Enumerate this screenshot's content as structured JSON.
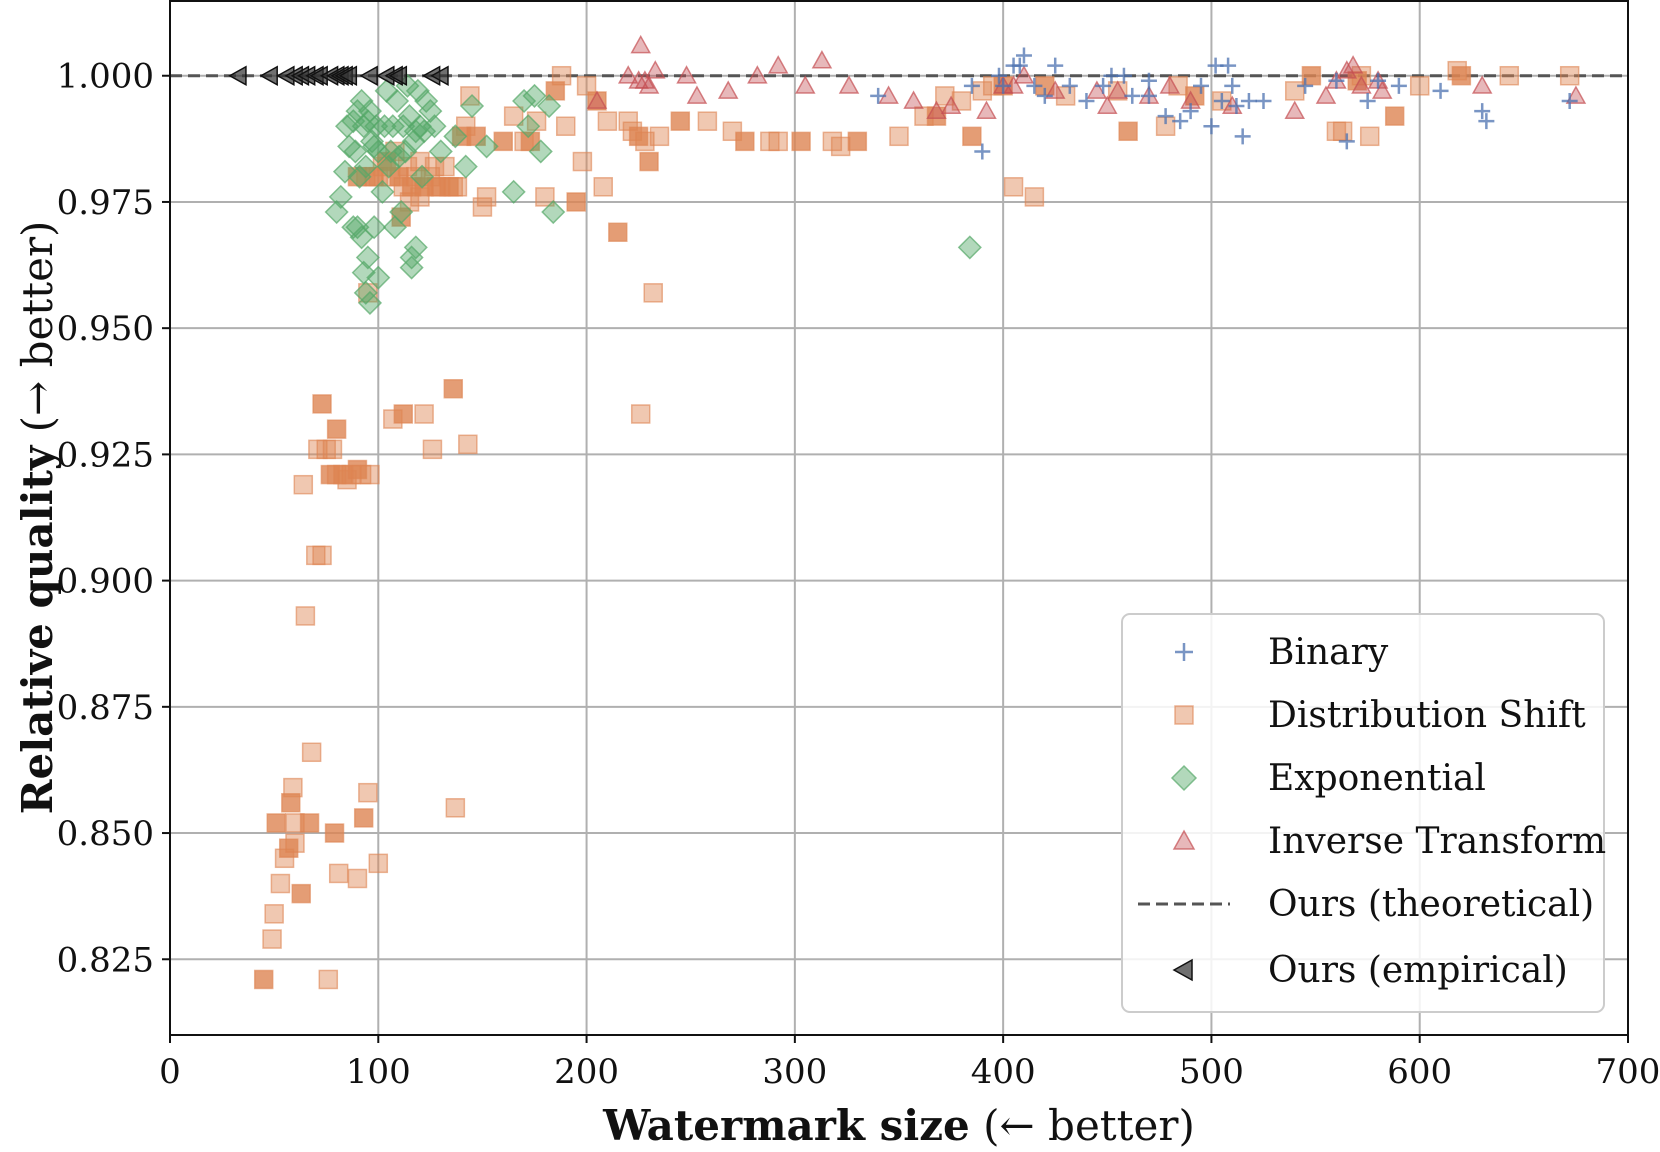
{
  "chart_data": {
    "type": "scatter",
    "title": "",
    "xlabel_bold": "Watermark size",
    "xlabel_rest": " (← better)",
    "ylabel_bold": "Relative quality",
    "ylabel_rest": " (→ better)",
    "xlim": [
      0,
      700
    ],
    "ylim": [
      0.81,
      1.015
    ],
    "xticks": [
      0,
      100,
      200,
      300,
      400,
      500,
      600,
      700
    ],
    "xtick_labels": [
      "0",
      "100",
      "200",
      "300",
      "400",
      "500",
      "600",
      "700"
    ],
    "yticks": [
      0.825,
      0.85,
      0.875,
      0.9,
      0.925,
      0.95,
      0.975,
      1.0
    ],
    "ytick_labels": [
      "0.825",
      "0.850",
      "0.875",
      "0.900",
      "0.925",
      "0.950",
      "0.975",
      "1.000"
    ],
    "grid": true,
    "legend_position": "lower-right",
    "colors": {
      "binary": "#4c72b0",
      "distribution_shift": "#dd8452",
      "exponential": "#55a868",
      "inverse_transform": "#c44e52",
      "ours": "#333333"
    },
    "legend": [
      {
        "label": "Binary",
        "marker": "plus",
        "series": "binary"
      },
      {
        "label": "Distribution Shift",
        "marker": "square",
        "series": "distribution_shift"
      },
      {
        "label": "Exponential",
        "marker": "diamond",
        "series": "exponential"
      },
      {
        "label": "Inverse Transform",
        "marker": "triangle-up",
        "series": "inverse_transform"
      },
      {
        "label": "Ours (theoretical)",
        "marker": "dashed-line",
        "series": "ours_theoretical"
      },
      {
        "label": "Ours (empirical)",
        "marker": "triangle-left",
        "series": "ours_empirical"
      }
    ],
    "series": {
      "ours_theoretical": {
        "y": 1.0
      },
      "ours_empirical": [
        [
          33,
          1.0
        ],
        [
          48,
          1.0
        ],
        [
          56,
          1.0
        ],
        [
          60,
          1.0
        ],
        [
          63,
          1.0
        ],
        [
          66,
          1.0
        ],
        [
          70,
          1.0
        ],
        [
          72,
          1.0
        ],
        [
          77,
          1.0
        ],
        [
          80,
          1.0
        ],
        [
          82,
          1.0
        ],
        [
          84,
          1.0
        ],
        [
          86,
          1.0
        ],
        [
          96,
          1.0
        ],
        [
          104,
          1.0
        ],
        [
          108,
          1.0
        ],
        [
          110,
          1.0
        ],
        [
          126,
          1.0
        ],
        [
          130,
          1.0
        ]
      ],
      "binary": [
        [
          340,
          0.996
        ],
        [
          385,
          0.998
        ],
        [
          390,
          0.985
        ],
        [
          398,
          1.0
        ],
        [
          400,
          0.998
        ],
        [
          405,
          1.002
        ],
        [
          408,
          1.002
        ],
        [
          410,
          1.004
        ],
        [
          415,
          0.998
        ],
        [
          420,
          0.996
        ],
        [
          425,
          1.002
        ],
        [
          432,
          0.998
        ],
        [
          440,
          0.995
        ],
        [
          448,
          0.998
        ],
        [
          452,
          1.0
        ],
        [
          458,
          1.0
        ],
        [
          462,
          0.996
        ],
        [
          470,
          0.996
        ],
        [
          478,
          0.992
        ],
        [
          485,
          0.991
        ],
        [
          490,
          0.993
        ],
        [
          495,
          0.998
        ],
        [
          500,
          0.99
        ],
        [
          502,
          1.002
        ],
        [
          505,
          0.995
        ],
        [
          508,
          1.002
        ],
        [
          510,
          0.998
        ],
        [
          512,
          0.994
        ],
        [
          515,
          0.988
        ],
        [
          518,
          0.995
        ],
        [
          525,
          0.995
        ],
        [
          545,
          0.998
        ],
        [
          560,
          0.999
        ],
        [
          565,
          0.987
        ],
        [
          575,
          0.995
        ],
        [
          580,
          0.999
        ],
        [
          610,
          0.997
        ],
        [
          630,
          0.993
        ],
        [
          632,
          0.991
        ],
        [
          672,
          0.995
        ],
        [
          590,
          0.998
        ],
        [
          470,
          0.999
        ]
      ],
      "distribution_shift": [
        [
          45,
          0.821
        ],
        [
          49,
          0.829
        ],
        [
          50,
          0.834
        ],
        [
          51,
          0.852
        ],
        [
          53,
          0.84
        ],
        [
          55,
          0.845
        ],
        [
          57,
          0.847
        ],
        [
          59,
          0.859
        ],
        [
          60,
          0.848
        ],
        [
          63,
          0.838
        ],
        [
          65,
          0.893
        ],
        [
          64,
          0.919
        ],
        [
          67,
          0.852
        ],
        [
          70,
          0.905
        ],
        [
          71,
          0.926
        ],
        [
          73,
          0.935
        ],
        [
          73,
          0.905
        ],
        [
          75,
          0.926
        ],
        [
          77,
          0.921
        ],
        [
          78,
          0.926
        ],
        [
          80,
          0.921
        ],
        [
          83,
          0.921
        ],
        [
          85,
          0.92
        ],
        [
          87,
          0.921
        ],
        [
          90,
          0.922
        ],
        [
          92,
          0.921
        ],
        [
          76,
          0.821
        ],
        [
          79,
          0.85
        ],
        [
          81,
          0.842
        ],
        [
          90,
          0.841
        ],
        [
          93,
          0.853
        ],
        [
          95,
          0.858
        ],
        [
          100,
          0.844
        ],
        [
          58,
          0.856
        ],
        [
          60,
          0.852
        ],
        [
          68,
          0.866
        ],
        [
          80,
          0.93
        ],
        [
          96,
          0.921
        ],
        [
          107,
          0.932
        ],
        [
          112,
          0.933
        ],
        [
          122,
          0.933
        ],
        [
          126,
          0.926
        ],
        [
          136,
          0.938
        ],
        [
          143,
          0.927
        ],
        [
          137,
          0.855
        ],
        [
          90,
          0.98
        ],
        [
          94,
          0.98
        ],
        [
          95,
          0.957
        ],
        [
          98,
          0.98
        ],
        [
          100,
          0.98
        ],
        [
          102,
          0.982
        ],
        [
          104,
          0.983
        ],
        [
          106,
          0.98
        ],
        [
          108,
          0.985
        ],
        [
          110,
          0.98
        ],
        [
          112,
          0.978
        ],
        [
          114,
          0.982
        ],
        [
          116,
          0.978
        ],
        [
          118,
          0.98
        ],
        [
          120,
          0.983
        ],
        [
          122,
          0.978
        ],
        [
          125,
          0.98
        ],
        [
          127,
          0.982
        ],
        [
          128,
          0.978
        ],
        [
          130,
          0.978
        ],
        [
          132,
          0.982
        ],
        [
          134,
          0.978
        ],
        [
          136,
          0.978
        ],
        [
          138,
          0.978
        ],
        [
          111,
          0.972
        ],
        [
          115,
          0.975
        ],
        [
          120,
          0.976
        ],
        [
          140,
          0.988
        ],
        [
          142,
          0.99
        ],
        [
          144,
          0.996
        ],
        [
          147,
          0.988
        ],
        [
          150,
          0.974
        ],
        [
          152,
          0.976
        ],
        [
          160,
          0.987
        ],
        [
          165,
          0.992
        ],
        [
          170,
          0.987
        ],
        [
          173,
          0.987
        ],
        [
          176,
          0.991
        ],
        [
          180,
          0.976
        ],
        [
          185,
          0.997
        ],
        [
          188,
          1.0
        ],
        [
          190,
          0.99
        ],
        [
          195,
          0.975
        ],
        [
          198,
          0.983
        ],
        [
          200,
          0.998
        ],
        [
          205,
          0.995
        ],
        [
          208,
          0.978
        ],
        [
          210,
          0.991
        ],
        [
          215,
          0.969
        ],
        [
          220,
          0.991
        ],
        [
          222,
          0.989
        ],
        [
          225,
          0.988
        ],
        [
          226,
          0.933
        ],
        [
          228,
          0.987
        ],
        [
          230,
          0.983
        ],
        [
          232,
          0.957
        ],
        [
          235,
          0.988
        ],
        [
          245,
          0.991
        ],
        [
          258,
          0.991
        ],
        [
          270,
          0.989
        ],
        [
          276,
          0.987
        ],
        [
          288,
          0.987
        ],
        [
          292,
          0.987
        ],
        [
          303,
          0.987
        ],
        [
          318,
          0.987
        ],
        [
          322,
          0.986
        ],
        [
          330,
          0.987
        ],
        [
          350,
          0.988
        ],
        [
          362,
          0.992
        ],
        [
          368,
          0.992
        ],
        [
          372,
          0.996
        ],
        [
          380,
          0.995
        ],
        [
          385,
          0.988
        ],
        [
          390,
          0.997
        ],
        [
          395,
          0.998
        ],
        [
          400,
          0.998
        ],
        [
          405,
          0.978
        ],
        [
          415,
          0.976
        ],
        [
          420,
          0.998
        ],
        [
          430,
          0.996
        ],
        [
          455,
          0.997
        ],
        [
          460,
          0.989
        ],
        [
          478,
          0.99
        ],
        [
          484,
          0.998
        ],
        [
          492,
          0.996
        ],
        [
          505,
          0.995
        ],
        [
          540,
          0.997
        ],
        [
          548,
          1.0
        ],
        [
          560,
          0.989
        ],
        [
          563,
          0.989
        ],
        [
          570,
          0.999
        ],
        [
          572,
          1.0
        ],
        [
          576,
          0.988
        ],
        [
          588,
          0.992
        ],
        [
          600,
          0.998
        ],
        [
          618,
          1.001
        ],
        [
          620,
          1.0
        ],
        [
          643,
          1.0
        ],
        [
          672,
          1.0
        ]
      ],
      "exponential": [
        [
          80,
          0.973
        ],
        [
          82,
          0.976
        ],
        [
          84,
          0.981
        ],
        [
          85,
          0.99
        ],
        [
          86,
          0.986
        ],
        [
          88,
          0.991
        ],
        [
          88,
          0.97
        ],
        [
          89,
          0.985
        ],
        [
          90,
          0.993
        ],
        [
          90,
          0.97
        ],
        [
          91,
          0.98
        ],
        [
          92,
          0.995
        ],
        [
          92,
          0.968
        ],
        [
          93,
          0.99
        ],
        [
          93,
          0.961
        ],
        [
          94,
          0.982
        ],
        [
          94,
          0.957
        ],
        [
          95,
          0.991
        ],
        [
          95,
          0.964
        ],
        [
          96,
          0.993
        ],
        [
          96,
          0.955
        ],
        [
          97,
          0.987
        ],
        [
          98,
          0.986
        ],
        [
          98,
          0.97
        ],
        [
          99,
          0.99
        ],
        [
          100,
          0.985
        ],
        [
          100,
          0.96
        ],
        [
          102,
          0.977
        ],
        [
          103,
          0.99
        ],
        [
          104,
          0.997
        ],
        [
          105,
          0.982
        ],
        [
          106,
          0.985
        ],
        [
          107,
          0.99
        ],
        [
          108,
          0.97
        ],
        [
          109,
          0.995
        ],
        [
          110,
          0.984
        ],
        [
          111,
          0.973
        ],
        [
          112,
          0.99
        ],
        [
          113,
          0.985
        ],
        [
          114,
          0.998
        ],
        [
          115,
          0.992
        ],
        [
          116,
          0.962
        ],
        [
          116,
          0.964
        ],
        [
          117,
          0.987
        ],
        [
          118,
          0.989
        ],
        [
          118,
          0.966
        ],
        [
          119,
          0.997
        ],
        [
          120,
          0.99
        ],
        [
          121,
          0.98
        ],
        [
          122,
          0.989
        ],
        [
          123,
          0.995
        ],
        [
          125,
          0.993
        ],
        [
          127,
          0.99
        ],
        [
          130,
          0.985
        ],
        [
          137,
          0.988
        ],
        [
          142,
          0.982
        ],
        [
          145,
          0.994
        ],
        [
          152,
          0.986
        ],
        [
          165,
          0.977
        ],
        [
          170,
          0.995
        ],
        [
          172,
          0.99
        ],
        [
          175,
          0.996
        ],
        [
          178,
          0.985
        ],
        [
          182,
          0.994
        ],
        [
          184,
          0.973
        ],
        [
          384,
          0.966
        ]
      ],
      "inverse_transform": [
        [
          205,
          0.995
        ],
        [
          220,
          1.0
        ],
        [
          225,
          0.999
        ],
        [
          226,
          1.006
        ],
        [
          228,
          0.999
        ],
        [
          230,
          0.998
        ],
        [
          233,
          1.001
        ],
        [
          248,
          1.0
        ],
        [
          253,
          0.996
        ],
        [
          268,
          0.997
        ],
        [
          282,
          1.0
        ],
        [
          292,
          1.002
        ],
        [
          305,
          0.998
        ],
        [
          313,
          1.003
        ],
        [
          326,
          0.998
        ],
        [
          345,
          0.996
        ],
        [
          357,
          0.995
        ],
        [
          368,
          0.993
        ],
        [
          375,
          0.994
        ],
        [
          392,
          0.993
        ],
        [
          400,
          0.998
        ],
        [
          405,
          0.998
        ],
        [
          410,
          1.0
        ],
        [
          425,
          0.997
        ],
        [
          445,
          0.997
        ],
        [
          450,
          0.994
        ],
        [
          455,
          0.997
        ],
        [
          470,
          0.996
        ],
        [
          480,
          0.998
        ],
        [
          490,
          0.995
        ],
        [
          510,
          0.994
        ],
        [
          540,
          0.993
        ],
        [
          555,
          0.996
        ],
        [
          560,
          0.999
        ],
        [
          565,
          1.001
        ],
        [
          568,
          1.002
        ],
        [
          572,
          0.998
        ],
        [
          580,
          0.999
        ],
        [
          582,
          0.997
        ],
        [
          630,
          0.998
        ],
        [
          675,
          0.996
        ]
      ]
    }
  }
}
